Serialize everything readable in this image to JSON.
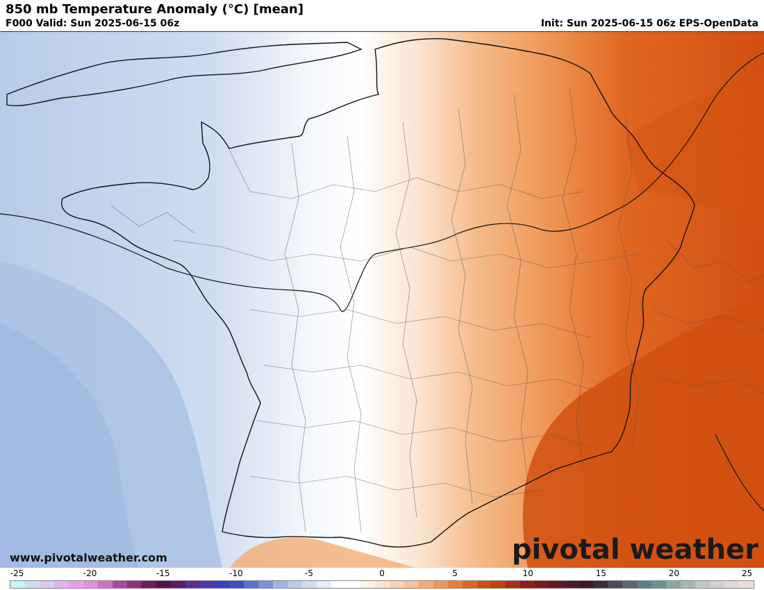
{
  "header": {
    "title": "850 mb Temperature Anomaly (°C) [mean]",
    "valid": "F000 Valid: Sun 2025-06-15 06z",
    "init": "Init: Sun 2025-06-15 06z EPS-OpenData"
  },
  "footer": {
    "website": "www.pivotalweather.com",
    "brand": "pivotal weather"
  },
  "colorbar": {
    "min": -25,
    "max": 26,
    "labels": [
      "-25",
      "-20",
      "-15",
      "-10",
      "-5",
      "0",
      "5",
      "10",
      "15",
      "20",
      "25"
    ],
    "colors": [
      "#c6f2f7",
      "#cfdcf5",
      "#d9c9f3",
      "#dfb3ef",
      "#e6a0ea",
      "#e48fe3",
      "#d56cc4",
      "#a74a9a",
      "#8a3277",
      "#6d1d59",
      "#5a1145",
      "#5c1d6a",
      "#5b2f8e",
      "#4b3aaa",
      "#3b3fbf",
      "#3c4fc9",
      "#5a6fd2",
      "#7b8fdb",
      "#9fb5e3",
      "#b8cbea",
      "#cfddf1",
      "#e6eff8",
      "#ffffff",
      "#ffffff",
      "#fdf1e6",
      "#fbe3cf",
      "#f9d3b3",
      "#f6c194",
      "#f3ad74",
      "#ee9553",
      "#e87e35",
      "#e06620",
      "#d14f12",
      "#c2400e",
      "#a82f12",
      "#8f1f16",
      "#7a1a1c",
      "#641822",
      "#4f1a2a",
      "#3b1a2a",
      "#3d2d3a",
      "#4e4a57",
      "#5a6770",
      "#5e7f7f",
      "#6b938f",
      "#87a8a2",
      "#a4b9b4",
      "#bdc8c4",
      "#d2d0cc",
      "#e2d9d6",
      "#ecdfdb"
    ]
  },
  "map": {
    "region": "France",
    "shading": {
      "west": "#a9c3e6",
      "neutral": "#ffffff",
      "east": "#d7540f"
    }
  }
}
